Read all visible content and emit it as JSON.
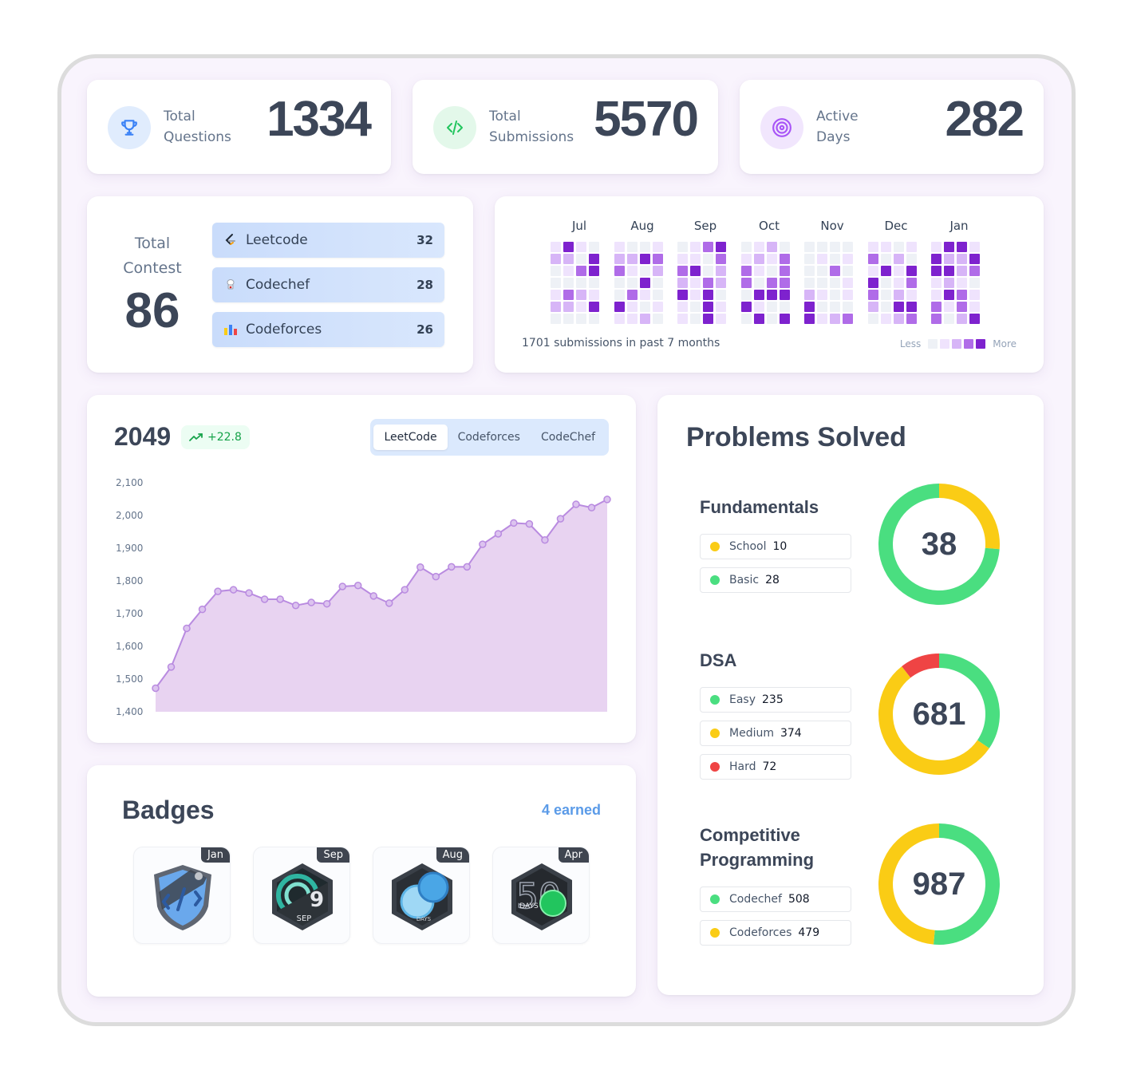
{
  "stats": [
    {
      "label_line1": "Total",
      "label_line2": "Questions",
      "value": "1334",
      "icon": "trophy-icon",
      "color": "#3b82f6",
      "bg": "#e0ecfd"
    },
    {
      "label_line1": "Total",
      "label_line2": "Submissions",
      "value": "5570",
      "icon": "code-icon",
      "color": "#22c55e",
      "bg": "#e3f8ea"
    },
    {
      "label_line1": "Active",
      "label_line2": "Days",
      "value": "282",
      "icon": "target-icon",
      "color": "#a855f7",
      "bg": "#f1e6fd"
    }
  ],
  "contest": {
    "label_line1": "Total",
    "label_line2": "Contest",
    "value": "86",
    "platforms": [
      {
        "name": "Leetcode",
        "count": "32",
        "icon": "leetcode-icon"
      },
      {
        "name": "Codechef",
        "count": "28",
        "icon": "codechef-icon"
      },
      {
        "name": "Codeforces",
        "count": "26",
        "icon": "codeforces-icon"
      }
    ]
  },
  "heatmap": {
    "months": [
      "Jul",
      "Aug",
      "Sep",
      "Oct",
      "Nov",
      "Dec",
      "Jan"
    ],
    "summary": "1701 submissions in past 7 months",
    "legend_less": "Less",
    "legend_more": "More",
    "colors": [
      "#eef1f6",
      "#efe3fd",
      "#d7b5f7",
      "#b06ce8",
      "#7e22ce"
    ]
  },
  "rating": {
    "current": "2049",
    "delta": "+22.8",
    "tabs": [
      "LeetCode",
      "Codeforces",
      "CodeChef"
    ],
    "active_tab": "LeetCode"
  },
  "chart_data": {
    "type": "area",
    "title": "",
    "xlabel": "",
    "ylabel": "",
    "ylim": [
      1400,
      2100
    ],
    "yticks": [
      "2,100",
      "2,000",
      "1,900",
      "1,800",
      "1,700",
      "1,600",
      "1,500",
      "1,400"
    ],
    "grid": false,
    "color": "#b98be0",
    "fill": "#e8d3f1",
    "x": [
      1,
      2,
      3,
      4,
      5,
      6,
      7,
      8,
      9,
      10,
      11,
      12,
      13,
      14,
      15,
      16,
      17,
      18,
      19,
      20,
      21,
      22,
      23,
      24,
      25,
      26,
      27,
      28,
      29,
      30
    ],
    "values": [
      1472,
      1537,
      1655,
      1713,
      1768,
      1773,
      1763,
      1744,
      1744,
      1725,
      1734,
      1730,
      1783,
      1786,
      1754,
      1732,
      1773,
      1842,
      1813,
      1843,
      1843,
      1912,
      1944,
      1977,
      1974,
      1925,
      1990,
      2034,
      2024,
      2049
    ]
  },
  "badges": {
    "title": "Badges",
    "earned": "4 earned",
    "items": [
      {
        "month": "Jan",
        "art": "shield-code-badge-icon"
      },
      {
        "month": "Sep",
        "art": "nine-sep-badge-icon",
        "art_text": "9",
        "art_sub": "SEP"
      },
      {
        "month": "Aug",
        "art": "days-circle-badge-icon",
        "art_sub": "DAYS"
      },
      {
        "month": "Apr",
        "art": "fifty-days-badge-icon",
        "art_text": "50",
        "art_sub": "DAYS"
      }
    ]
  },
  "problems": {
    "title": "Problems Solved",
    "sections": [
      {
        "title_line1": "Fundamentals",
        "title_line2": "",
        "total": "38",
        "items": [
          {
            "name": "School",
            "count": "10",
            "value": 10,
            "color": "#facc15"
          },
          {
            "name": "Basic",
            "count": "28",
            "value": 28,
            "color": "#4ade80"
          }
        ]
      },
      {
        "title_line1": "DSA",
        "title_line2": "",
        "total": "681",
        "items": [
          {
            "name": "Easy",
            "count": "235",
            "value": 235,
            "color": "#4ade80"
          },
          {
            "name": "Medium",
            "count": "374",
            "value": 374,
            "color": "#facc15"
          },
          {
            "name": "Hard",
            "count": "72",
            "value": 72,
            "color": "#ef4444"
          }
        ]
      },
      {
        "title_line1": "Competitive",
        "title_line2": "Programming",
        "total": "987",
        "items": [
          {
            "name": "Codechef",
            "count": "508",
            "value": 508,
            "color": "#4ade80"
          },
          {
            "name": "Codeforces",
            "count": "479",
            "value": 479,
            "color": "#facc15"
          }
        ]
      }
    ]
  }
}
